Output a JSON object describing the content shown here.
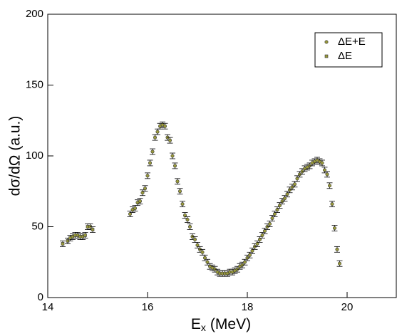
{
  "chart_data": {
    "type": "scatter",
    "x_label": [
      "E",
      "x",
      "(MeV)"
    ],
    "y_label": "dσ/dΩ (a.u.)",
    "xlim": [
      14,
      21
    ],
    "xticks": [
      14,
      16,
      18,
      20
    ],
    "ylim": [
      0,
      200
    ],
    "yticks": [
      0,
      50,
      100,
      150,
      200
    ],
    "legend_position": "upper right",
    "series": [
      {
        "name": "ΔE+E",
        "color": "#9a9a3c",
        "marker": "circle",
        "error": 2,
        "x": [
          15.65,
          15.7,
          15.75,
          15.8,
          15.85,
          15.9,
          15.95,
          16.0,
          16.05,
          16.1,
          16.15,
          16.2,
          16.25,
          16.3,
          16.35,
          16.4,
          16.45,
          16.5,
          16.55,
          16.6,
          16.65,
          16.7,
          16.75,
          16.8,
          16.85,
          16.9,
          16.95,
          17.0,
          17.05,
          17.1,
          17.15,
          17.2,
          17.25,
          17.3,
          17.35,
          17.4,
          17.45,
          17.5,
          17.55,
          17.6,
          17.65,
          17.7,
          17.75,
          17.8,
          17.85,
          17.9,
          17.95,
          18.0,
          18.05,
          18.1,
          18.15,
          18.2,
          18.25,
          18.3,
          18.35,
          18.4,
          18.45,
          18.5,
          18.55,
          18.6,
          18.65,
          18.7,
          18.75,
          18.8,
          18.85,
          18.9,
          18.95,
          19.0,
          19.05,
          19.1,
          19.15,
          19.2,
          19.25,
          19.3,
          19.35,
          19.4,
          19.45,
          19.5,
          19.55,
          19.6,
          19.65,
          19.7,
          19.75,
          19.8,
          19.85
        ],
        "values": [
          59,
          62,
          63,
          67,
          68,
          74,
          77,
          86,
          95,
          103,
          113,
          117,
          121,
          122,
          121,
          113,
          111,
          100,
          93,
          82,
          75,
          66,
          58,
          55,
          50,
          43,
          41,
          37,
          34,
          32,
          28,
          25,
          22,
          21,
          20,
          18,
          17,
          17,
          17,
          17,
          18,
          18,
          19,
          20,
          22,
          23,
          25,
          28,
          30,
          33,
          36,
          38,
          41,
          44,
          47,
          50,
          52,
          56,
          59,
          62,
          65,
          68,
          70,
          73,
          76,
          78,
          80,
          84,
          87,
          89,
          91,
          92,
          93,
          95,
          96,
          97,
          96,
          95,
          90,
          87,
          79,
          66,
          49,
          34,
          24
        ]
      },
      {
        "name": "ΔE",
        "color": "#9a9a3c",
        "marker": "square",
        "error": 2,
        "x": [
          14.3,
          14.4,
          14.45,
          14.5,
          14.55,
          14.6,
          14.65,
          14.7,
          14.75,
          14.8,
          14.85,
          14.9
        ],
        "values": [
          38,
          40,
          42,
          43,
          44,
          44,
          43,
          43,
          44,
          50,
          50,
          48
        ]
      }
    ]
  }
}
